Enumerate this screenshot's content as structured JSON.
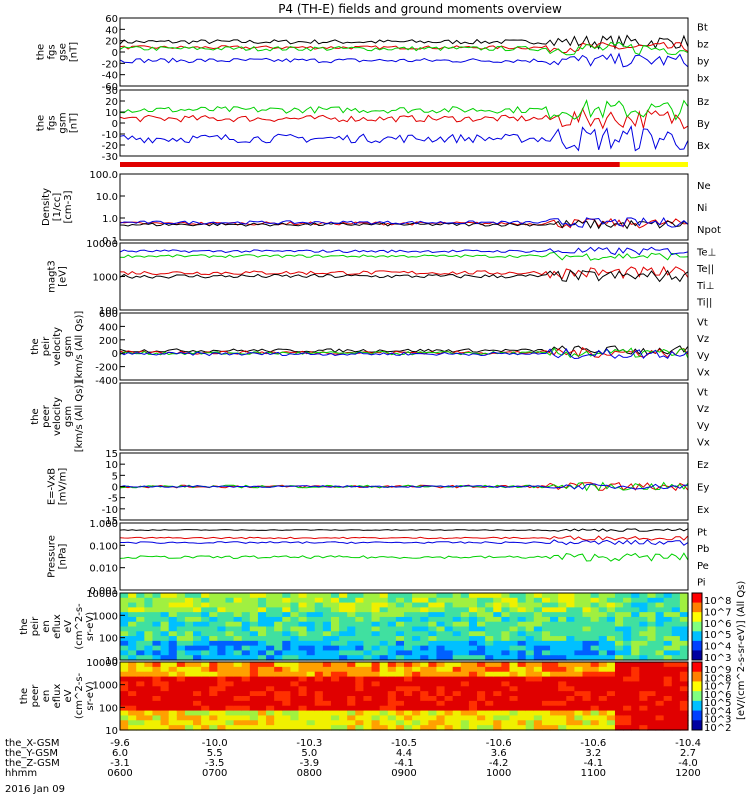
{
  "title": "P4 (TH-E) fields and ground moments overview",
  "date_label": "2016 Jan 09",
  "colors": {
    "black": "#000000",
    "red": "#e00000",
    "green": "#00d000",
    "blue": "#0000e0",
    "yellow": "#ffff00"
  },
  "chart_data": [
    {
      "type": "line",
      "panel": "fgs_gse",
      "ylabel": [
        "the",
        "fgs",
        "gse",
        "[nT]"
      ],
      "yticks": [
        "60",
        "40",
        "20",
        "0",
        "-20",
        "-40",
        "-60"
      ],
      "ylim": [
        -60,
        60
      ],
      "log": false,
      "series": [
        {
          "name": "Bt",
          "color": "#000000",
          "level": 18,
          "noise": 4
        },
        {
          "name": "bz",
          "color": "#e00000",
          "level": 8,
          "noise": 3
        },
        {
          "name": "by",
          "color": "#00d000",
          "level": 6,
          "noise": 4
        },
        {
          "name": "bx",
          "color": "#0000e0",
          "level": -15,
          "noise": 4
        }
      ]
    },
    {
      "type": "line",
      "panel": "fgs_gsm",
      "ylabel": [
        "the",
        "fgs",
        "gsm",
        "[nT]"
      ],
      "yticks": [
        "30",
        "20",
        "10",
        "0",
        "-10",
        "-20",
        "-30"
      ],
      "ylim": [
        -30,
        30
      ],
      "log": false,
      "series": [
        {
          "name": "Bz",
          "color": "#e00000",
          "level": 4,
          "noise": 3
        },
        {
          "name": "By",
          "color": "#00d000",
          "level": 12,
          "noise": 3
        },
        {
          "name": "Bx",
          "color": "#0000e0",
          "level": -14,
          "noise": 4
        }
      ]
    },
    {
      "type": "line",
      "panel": "density",
      "ylabel": [
        "Density",
        "[1/cc]",
        "[cm-3]"
      ],
      "yticks": [
        "100.0",
        "10.0",
        "1.0",
        "0.1"
      ],
      "ylim": [
        0.05,
        200
      ],
      "log": true,
      "series": [
        {
          "name": "Ne",
          "color": "#e00000",
          "level": 0.4,
          "noise": 0.2
        },
        {
          "name": "Ni",
          "color": "#000000",
          "level": 0.35,
          "noise": 0.2
        },
        {
          "name": "Npot",
          "color": "#0000e0",
          "level": 0.45,
          "noise": 0.2
        }
      ]
    },
    {
      "type": "line",
      "panel": "temperature",
      "ylabel": [
        "magt3",
        "[eV]"
      ],
      "yticks": [
        "10000",
        "1000",
        "100"
      ],
      "ylim": [
        80,
        12000
      ],
      "log": true,
      "series": [
        {
          "name": "Te⊥",
          "color": "#e00000",
          "level": 1300,
          "noise": 0.15
        },
        {
          "name": "Te||",
          "color": "#000000",
          "level": 1000,
          "noise": 0.15
        },
        {
          "name": "Ti⊥",
          "color": "#00d000",
          "level": 4500,
          "noise": 0.1
        },
        {
          "name": "Ti||",
          "color": "#0000e0",
          "level": 6500,
          "noise": 0.1
        }
      ]
    },
    {
      "type": "line",
      "panel": "peir_velocity",
      "ylabel": [
        "the",
        "peir",
        "velocity",
        "gsm",
        "[km/s (All Qs)]"
      ],
      "yticks": [
        "600",
        "400",
        "200",
        "0",
        "-200",
        "-400"
      ],
      "ylim": [
        -400,
        600
      ],
      "log": false,
      "series": [
        {
          "name": "Vt",
          "color": "#000000",
          "level": 40,
          "noise": 25
        },
        {
          "name": "Vz",
          "color": "#e00000",
          "level": 10,
          "noise": 25
        },
        {
          "name": "Vy",
          "color": "#00d000",
          "level": 0,
          "noise": 25
        },
        {
          "name": "Vx",
          "color": "#0000e0",
          "level": -10,
          "noise": 25
        }
      ]
    },
    {
      "type": "line",
      "panel": "peer_velocity",
      "ylabel": [
        "the",
        "peer",
        "velocity",
        "gsm",
        "[km/s (All Qs)]"
      ],
      "yticks": [],
      "ylim": [
        -400,
        600
      ],
      "log": false,
      "series": [
        {
          "name": "Vt",
          "color": "#000000"
        },
        {
          "name": "Vz",
          "color": "#e00000"
        },
        {
          "name": "Vy",
          "color": "#00d000"
        },
        {
          "name": "Vx",
          "color": "#0000e0"
        }
      ]
    },
    {
      "type": "line",
      "panel": "efield",
      "ylabel": [
        "E=-VxB",
        "[mV/m]"
      ],
      "yticks": [
        "15",
        "10",
        "5",
        "0",
        "-5",
        "-10",
        "-15"
      ],
      "ylim": [
        -15,
        15
      ],
      "log": false,
      "series": [
        {
          "name": "Ez",
          "color": "#e00000",
          "level": 0,
          "noise": 0.6
        },
        {
          "name": "Ey",
          "color": "#00d000",
          "level": 0,
          "noise": 0.6
        },
        {
          "name": "Ex",
          "color": "#0000e0",
          "level": 0,
          "noise": 0.4
        }
      ]
    },
    {
      "type": "line",
      "panel": "pressure",
      "ylabel": [
        "Pressure",
        "[nPa]"
      ],
      "yticks": [
        "1.000",
        "0.100",
        "0.010",
        "0.001"
      ],
      "ylim": [
        0.0008,
        1.3
      ],
      "log": true,
      "series": [
        {
          "name": "Pt",
          "color": "#000000",
          "level": 0.6,
          "noise": 0.05
        },
        {
          "name": "Pb",
          "color": "#e00000",
          "level": 0.25,
          "noise": 0.08
        },
        {
          "name": "Pe",
          "color": "#00d000",
          "level": 0.03,
          "noise": 0.15
        },
        {
          "name": "Pi",
          "color": "#0000e0",
          "level": 0.15,
          "noise": 0.1
        }
      ]
    },
    {
      "type": "heatmap",
      "panel": "peir_eflux",
      "ylabel": [
        "the",
        "peir",
        "en",
        "eflux",
        "eV",
        "(cm^2-s-",
        "sr-eV)"
      ],
      "yticks": [
        "10000",
        "1000",
        "100",
        "10"
      ],
      "colorbar_ticks": [
        "10^8",
        "10^7",
        "10^6",
        "10^5",
        "10^4",
        "10^3"
      ]
    },
    {
      "type": "heatmap",
      "panel": "peer_eflux",
      "ylabel": [
        "the",
        "peer",
        "en",
        "eflux",
        "eV",
        "(cm^2-s-",
        "sr-eV)"
      ],
      "yticks": [
        "10000",
        "1000",
        "100",
        "10"
      ],
      "colorbar_ticks": [
        "10^9",
        "10^8",
        "10^7",
        "10^6",
        "10^5",
        "10^4",
        "10^3",
        "10^2"
      ]
    }
  ],
  "colorbar_label": "[eV/(cm^2-s-sr-eV)] (All Qs)",
  "x_axis": {
    "rows": [
      {
        "name": "the_X-GSM",
        "values": [
          "-9.6",
          "-10.0",
          "-10.3",
          "-10.5",
          "-10.6",
          "-10.6",
          "-10.4"
        ]
      },
      {
        "name": "the_Y-GSM",
        "values": [
          "6.0",
          "5.5",
          "5.0",
          "4.4",
          "3.6",
          "3.2",
          "2.7"
        ]
      },
      {
        "name": "the_Z-GSM",
        "values": [
          "-3.1",
          "-3.5",
          "-3.9",
          "-4.1",
          "-4.2",
          "-4.1",
          "-4.0"
        ]
      },
      {
        "name": "hhmm",
        "values": [
          "0600",
          "0700",
          "0800",
          "0900",
          "1000",
          "1100",
          "1200"
        ]
      }
    ]
  }
}
